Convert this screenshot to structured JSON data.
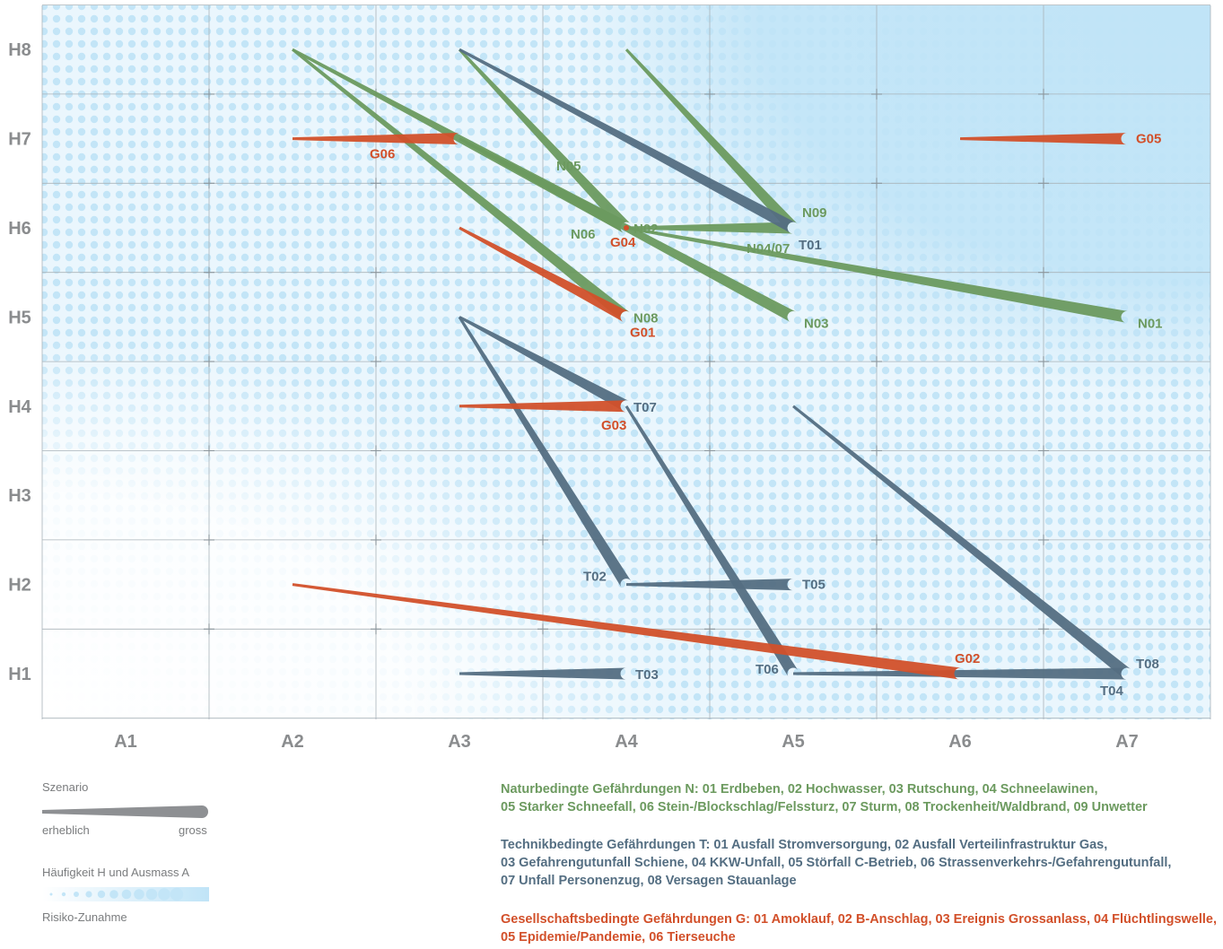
{
  "chart_data": {
    "type": "scatter",
    "x_ticks": [
      "A1",
      "A2",
      "A3",
      "A4",
      "A5",
      "A6",
      "A7"
    ],
    "y_ticks": [
      "H1",
      "H2",
      "H3",
      "H4",
      "H5",
      "H6",
      "H7",
      "H8"
    ],
    "xlim": [
      0.5,
      7.5
    ],
    "ylim": [
      0.5,
      8.5
    ],
    "background": "risk gradient increasing toward top-right",
    "grid": true,
    "series": [
      {
        "name": "Naturbedingte Gefährdungen",
        "color": "#6c9a5f",
        "items": [
          {
            "label": "N01",
            "from": [
              4,
              6
            ],
            "to": [
              7,
              5
            ]
          },
          {
            "label": "N02",
            "from": [
              3,
              8
            ],
            "to": [
              4,
              6
            ]
          },
          {
            "label": "N03",
            "from": [
              3,
              7
            ],
            "to": [
              5,
              5
            ]
          },
          {
            "label": "N04/07",
            "from": [
              4,
              6
            ],
            "to": [
              5,
              6
            ]
          },
          {
            "label": "N05",
            "from": [
              3,
              7
            ],
            "to": [
              4,
              6
            ]
          },
          {
            "label": "N06",
            "from": [
              2,
              8
            ],
            "to": [
              4,
              6
            ]
          },
          {
            "label": "N08",
            "from": [
              2,
              8
            ],
            "to": [
              4,
              5
            ]
          },
          {
            "label": "N09",
            "from": [
              4,
              8
            ],
            "to": [
              5,
              6
            ]
          }
        ]
      },
      {
        "name": "Technikbedingte Gefährdungen",
        "color": "#546e82",
        "items": [
          {
            "label": "T01",
            "from": [
              3,
              8
            ],
            "to": [
              5,
              6
            ]
          },
          {
            "label": "T02",
            "from": [
              3,
              5
            ],
            "to": [
              4,
              2
            ]
          },
          {
            "label": "T03",
            "from": [
              3,
              1
            ],
            "to": [
              4,
              1
            ]
          },
          {
            "label": "T04",
            "from": [
              5,
              1
            ],
            "to": [
              7,
              1
            ]
          },
          {
            "label": "T05",
            "from": [
              4,
              2
            ],
            "to": [
              5,
              2
            ]
          },
          {
            "label": "T06",
            "from": [
              4,
              4
            ],
            "to": [
              5,
              1
            ]
          },
          {
            "label": "T07",
            "from": [
              3,
              5
            ],
            "to": [
              4,
              4
            ]
          },
          {
            "label": "T08",
            "from": [
              5,
              4
            ],
            "to": [
              7,
              1
            ]
          }
        ]
      },
      {
        "name": "Gesellschaftsbedingte Gefährdungen",
        "color": "#d2502a",
        "items": [
          {
            "label": "G01",
            "from": [
              3,
              6
            ],
            "to": [
              4,
              5
            ]
          },
          {
            "label": "G02",
            "from": [
              2,
              2
            ],
            "to": [
              6,
              1
            ]
          },
          {
            "label": "G03",
            "from": [
              3,
              4
            ],
            "to": [
              4,
              4
            ]
          },
          {
            "label": "G04",
            "from": [
              4,
              6
            ],
            "to": [
              4,
              6
            ]
          },
          {
            "label": "G05",
            "from": [
              6,
              7
            ],
            "to": [
              7,
              7
            ]
          },
          {
            "label": "G06",
            "from": [
              2,
              7
            ],
            "to": [
              3,
              7
            ]
          }
        ]
      }
    ]
  },
  "legend": {
    "scenario_title": "Szenario",
    "scenario_low": "erheblich",
    "scenario_high": "gross",
    "gradient_title": "Häufigkeit H und Ausmass A",
    "gradient_caption": "Risiko-Zunahme"
  },
  "categories": {
    "nature": {
      "color": "#6c9a5f",
      "lines": [
        "Naturbedingte Gefährdungen N: 01 Erdbeben, 02 Hochwasser, 03 Rutschung, 04 Schneelawinen,",
        "05 Starker Schneefall, 06 Stein-/Blockschlag/Felssturz, 07 Sturm, 08 Trockenheit/Waldbrand, 09 Unwetter"
      ]
    },
    "tech": {
      "color": "#546e82",
      "lines": [
        "Technikbedingte Gefährdungen T: 01 Ausfall Stromversorgung, 02 Ausfall Verteilinfrastruktur Gas,",
        "03 Gefahrengutunfall Schiene, 04 KKW-Unfall, 05 Störfall C-Betrieb, 06 Strassenverkehrs-/Gefahrengutunfall,",
        "07 Unfall Personenzug, 08 Versagen Stauanlage"
      ]
    },
    "society": {
      "color": "#d2502a",
      "lines": [
        "Gesellschaftsbedingte Gefährdungen G: 01 Amoklauf, 02 B-Anschlag, 03 Ereignis Grossanlass, 04 Flüchtlingswelle,",
        "05 Epidemie/Pandemie, 06 Tierseuche"
      ]
    }
  }
}
